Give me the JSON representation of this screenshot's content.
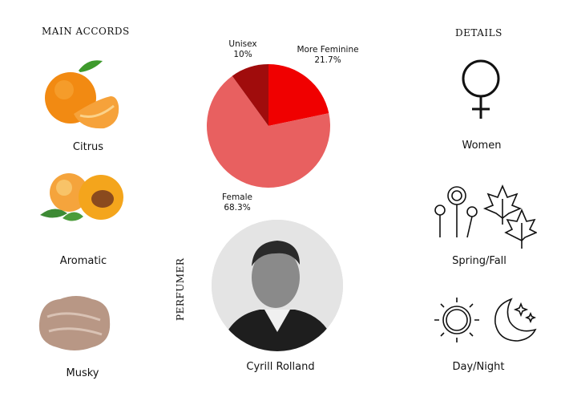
{
  "accords": {
    "heading": "MAIN ACCORDS",
    "items": [
      {
        "label": "Citrus",
        "icon": "tangerine-icon"
      },
      {
        "label": "Aromatic",
        "icon": "apricot-icon"
      },
      {
        "label": "Musky",
        "icon": "musk-fiber-icon"
      }
    ]
  },
  "chart_data": {
    "type": "pie",
    "slices": [
      {
        "label": "More Feminine",
        "value": 21.7,
        "value_label": "21.7%",
        "color": "#f00000"
      },
      {
        "label": "Female",
        "value": 68.3,
        "value_label": "68.3%",
        "color": "#e86060"
      },
      {
        "label": "Unisex",
        "value": 10,
        "value_label": "10%",
        "color": "#a00c0c"
      }
    ],
    "start": "top",
    "direction": "clockwise"
  },
  "perfumer": {
    "heading": "PERFUMER",
    "name": "Cyrill Rolland"
  },
  "details": {
    "heading": "DETAILS",
    "items": [
      {
        "label": "Women",
        "icon": "female-symbol-icon"
      },
      {
        "label": "Spring/Fall",
        "icon": "flowers-and-leaves-icon"
      },
      {
        "label": "Day/Night",
        "icon": "sun-and-moon-icon"
      }
    ]
  }
}
